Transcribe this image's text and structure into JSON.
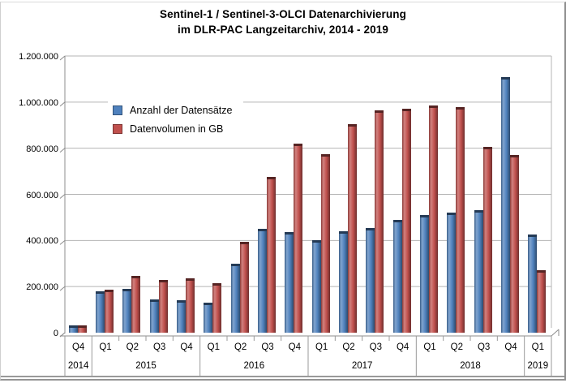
{
  "accent_colors": {
    "series_blue": "#4f81bd",
    "series_red": "#c0504d",
    "gridline": "#b4b4b4",
    "axis_line": "#8c8c8c",
    "separator": "#9a9a9a"
  },
  "chart_data": {
    "type": "bar",
    "title": "Sentinel-1 / Sentinel-3-OLCI Datenarchivierung im DLR-PAC Langzeitarchiv, 2014 - 2019",
    "title_lines": [
      "Sentinel-1 / Sentinel-3-OLCI Datenarchivierung",
      "im DLR-PAC Langzeitarchiv, 2014 - 2019"
    ],
    "categories": [
      "Q4",
      "Q1",
      "Q2",
      "Q3",
      "Q4",
      "Q1",
      "Q2",
      "Q3",
      "Q4",
      "Q1",
      "Q2",
      "Q3",
      "Q4",
      "Q1",
      "Q2",
      "Q3",
      "Q4",
      "Q1"
    ],
    "year_groups": [
      {
        "label": "2014",
        "span": 1
      },
      {
        "label": "2015",
        "span": 4
      },
      {
        "label": "2016",
        "span": 4
      },
      {
        "label": "2017",
        "span": 4
      },
      {
        "label": "2018",
        "span": 4
      },
      {
        "label": "2019",
        "span": 1
      }
    ],
    "series": [
      {
        "name": "Anzahl der Datensätze",
        "color": "#4f81bd",
        "values": [
          30000,
          180000,
          190000,
          145000,
          140000,
          130000,
          300000,
          450000,
          435000,
          400000,
          440000,
          455000,
          490000,
          510000,
          520000,
          530000,
          1110000,
          425000
        ]
      },
      {
        "name": "Datenvolumen in GB",
        "color": "#c0504d",
        "values": [
          30000,
          185000,
          245000,
          230000,
          235000,
          215000,
          395000,
          675000,
          820000,
          775000,
          905000,
          965000,
          970000,
          985000,
          980000,
          805000,
          770000,
          270000
        ]
      }
    ],
    "y_axis": {
      "min": 0,
      "max": 1200000,
      "tick_values": [
        0,
        200000,
        400000,
        600000,
        800000,
        1000000,
        1200000
      ],
      "tick_labels": [
        "0",
        "200.000",
        "400.000",
        "600.000",
        "800.000",
        "1.000.000",
        "1.200.000"
      ]
    },
    "grid": true,
    "legend_position": "inside-top-left",
    "style": "3d-effect"
  }
}
